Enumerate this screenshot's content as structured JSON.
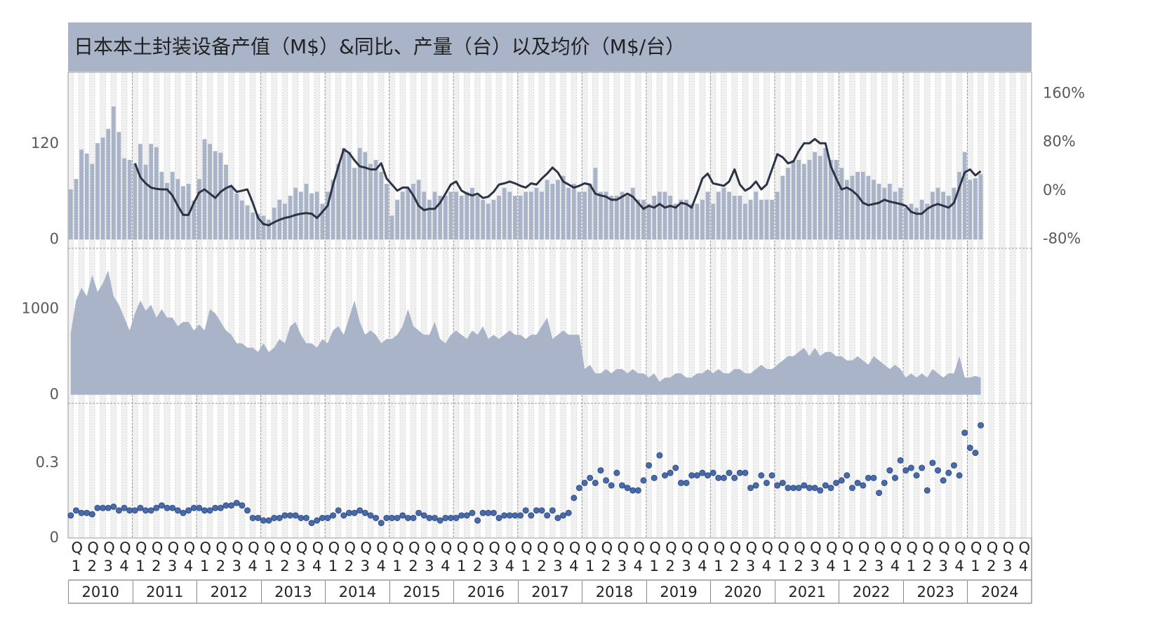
{
  "title": "日本本土封装设备产值（M$）&同比、产量（台）以及均价（M$/台）",
  "x_axis": {
    "quarters": [
      "Q1",
      "Q2",
      "Q3",
      "Q4"
    ],
    "years": [
      "2010",
      "2011",
      "2012",
      "2013",
      "2014",
      "2015",
      "2016",
      "2017",
      "2018",
      "2019",
      "2020",
      "2021",
      "2022",
      "2023",
      "2024"
    ]
  },
  "chart_data": [
    {
      "type": "bar",
      "ylim": [
        -11,
        210
      ],
      "yticks": [
        0,
        120
      ],
      "y2lim": [
        -95,
        195
      ],
      "y2ticks": [
        {
          "value": -80,
          "label": "-80%"
        },
        {
          "value": 0,
          "label": "0%"
        },
        {
          "value": 80,
          "label": "80%"
        },
        {
          "value": 160,
          "label": "160%"
        }
      ],
      "grid": true,
      "series": [
        {
          "type": "bar",
          "color": "#aab4c8",
          "values": [
            63,
            76,
            113,
            108,
            95,
            121,
            128,
            139,
            167,
            135,
            102,
            100,
            95,
            120,
            94,
            120,
            116,
            85,
            71,
            85,
            76,
            67,
            70,
            49,
            76,
            126,
            120,
            111,
            109,
            94,
            67,
            58,
            49,
            43,
            34,
            32,
            30,
            25,
            40,
            50,
            45,
            55,
            65,
            60,
            70,
            58,
            60,
            45,
            60,
            75,
            95,
            115,
            110,
            90,
            115,
            110,
            95,
            100,
            85,
            70,
            30,
            50,
            60,
            65,
            70,
            75,
            60,
            50,
            60,
            55,
            55,
            60,
            60,
            55,
            60,
            65,
            55,
            50,
            45,
            50,
            55,
            65,
            60,
            55,
            55,
            60,
            60,
            65,
            60,
            75,
            70,
            75,
            80,
            65,
            70,
            60,
            60,
            70,
            90,
            60,
            60,
            55,
            55,
            60,
            55,
            65,
            50,
            50,
            45,
            55,
            60,
            60,
            55,
            45,
            50,
            50,
            45,
            45,
            50,
            60,
            45,
            60,
            65,
            60,
            55,
            55,
            45,
            50,
            60,
            50,
            50,
            50,
            60,
            80,
            90,
            100,
            100,
            95,
            100,
            110,
            105,
            115,
            100,
            100,
            90,
            75,
            80,
            85,
            85,
            80,
            75,
            70,
            65,
            70,
            60,
            65,
            40,
            45,
            40,
            50,
            45,
            60,
            65,
            60,
            55,
            65,
            85,
            110,
            75,
            77,
            82
          ]
        },
        {
          "type": "line",
          "axis": "y2",
          "color": "#2b3345",
          "values": [
            null,
            null,
            null,
            null,
            null,
            null,
            null,
            null,
            null,
            null,
            null,
            null,
            45,
            22,
            12,
            5,
            3,
            2,
            2,
            -8,
            -25,
            -40,
            -40,
            -20,
            -3,
            2,
            -5,
            -12,
            -2,
            4,
            8,
            -2,
            0,
            2,
            -20,
            -45,
            -55,
            -57,
            -52,
            -48,
            -45,
            -43,
            -40,
            -38,
            -37,
            -38,
            -45,
            -35,
            -25,
            10,
            40,
            68,
            62,
            50,
            40,
            38,
            35,
            35,
            45,
            20,
            10,
            0,
            5,
            5,
            -8,
            -25,
            -32,
            -30,
            -30,
            -20,
            -5,
            10,
            15,
            0,
            -5,
            -8,
            -5,
            -12,
            -10,
            -2,
            10,
            12,
            15,
            12,
            8,
            5,
            12,
            10,
            20,
            28,
            38,
            30,
            15,
            10,
            5,
            8,
            12,
            10,
            -5,
            -8,
            -10,
            -15,
            -15,
            -10,
            -5,
            -10,
            -20,
            -30,
            -25,
            -28,
            -22,
            -28,
            -25,
            -28,
            -20,
            -22,
            -28,
            -5,
            20,
            28,
            12,
            10,
            8,
            15,
            35,
            10,
            0,
            5,
            15,
            2,
            10,
            35,
            60,
            55,
            45,
            48,
            65,
            78,
            78,
            85,
            78,
            78,
            40,
            20,
            2,
            5,
            0,
            -8,
            -20,
            -24,
            -22,
            -20,
            -15,
            -18,
            -20,
            -22,
            -25,
            -35,
            -38,
            -38,
            -30,
            -25,
            -22,
            -25,
            -28,
            -20,
            5,
            30,
            35,
            25,
            32
          ]
        }
      ]
    },
    {
      "type": "area",
      "ylim": [
        -100,
        1700
      ],
      "yticks": [
        0,
        1000
      ],
      "color": "#aab4c8",
      "values": [
        720,
        1100,
        1250,
        1150,
        1400,
        1200,
        1300,
        1450,
        1150,
        1050,
        900,
        750,
        950,
        1100,
        980,
        1050,
        900,
        1000,
        900,
        900,
        800,
        850,
        850,
        750,
        820,
        750,
        1000,
        950,
        850,
        750,
        700,
        600,
        600,
        550,
        550,
        500,
        600,
        500,
        550,
        650,
        600,
        800,
        850,
        700,
        600,
        600,
        550,
        650,
        600,
        750,
        800,
        700,
        900,
        1100,
        850,
        700,
        750,
        700,
        600,
        650,
        650,
        700,
        800,
        1000,
        800,
        750,
        700,
        700,
        850,
        650,
        600,
        700,
        750,
        700,
        650,
        750,
        700,
        800,
        650,
        700,
        650,
        700,
        750,
        700,
        700,
        650,
        700,
        700,
        800,
        900,
        650,
        700,
        750,
        700,
        700,
        700,
        300,
        350,
        250,
        250,
        300,
        250,
        300,
        300,
        250,
        300,
        250,
        250,
        200,
        250,
        150,
        200,
        200,
        250,
        250,
        200,
        200,
        250,
        250,
        300,
        250,
        300,
        250,
        250,
        300,
        300,
        250,
        250,
        300,
        350,
        300,
        300,
        350,
        400,
        450,
        450,
        500,
        550,
        450,
        550,
        450,
        500,
        500,
        450,
        450,
        400,
        400,
        450,
        400,
        350,
        450,
        400,
        350,
        300,
        350,
        300,
        200,
        250,
        200,
        250,
        200,
        300,
        250,
        200,
        250,
        250,
        450,
        200,
        200,
        220,
        200
      ]
    },
    {
      "type": "dot",
      "ylim": [
        0,
        0.535
      ],
      "yticks": [
        0,
        0.3
      ],
      "color": "#4a6aa8",
      "values": [
        0.09,
        0.11,
        0.1,
        0.1,
        0.095,
        0.12,
        0.12,
        0.12,
        0.125,
        0.11,
        0.12,
        0.11,
        0.11,
        0.12,
        0.11,
        0.11,
        0.12,
        0.13,
        0.12,
        0.12,
        0.11,
        0.1,
        0.11,
        0.12,
        0.12,
        0.11,
        0.11,
        0.12,
        0.12,
        0.13,
        0.13,
        0.14,
        0.13,
        0.11,
        0.08,
        0.08,
        0.07,
        0.07,
        0.08,
        0.08,
        0.09,
        0.09,
        0.09,
        0.08,
        0.08,
        0.06,
        0.07,
        0.08,
        0.08,
        0.09,
        0.11,
        0.09,
        0.1,
        0.1,
        0.11,
        0.1,
        0.09,
        0.08,
        0.06,
        0.08,
        0.08,
        0.08,
        0.09,
        0.08,
        0.08,
        0.1,
        0.09,
        0.08,
        0.08,
        0.07,
        0.08,
        0.08,
        0.08,
        0.09,
        0.09,
        0.1,
        0.07,
        0.1,
        0.1,
        0.1,
        0.08,
        0.09,
        0.09,
        0.09,
        0.09,
        0.11,
        0.09,
        0.11,
        0.11,
        0.09,
        0.11,
        0.08,
        0.09,
        0.1,
        0.16,
        0.2,
        0.22,
        0.24,
        0.22,
        0.27,
        0.23,
        0.21,
        0.26,
        0.21,
        0.2,
        0.19,
        0.19,
        0.23,
        0.29,
        0.24,
        0.33,
        0.25,
        0.26,
        0.28,
        0.22,
        0.22,
        0.25,
        0.25,
        0.26,
        0.25,
        0.26,
        0.24,
        0.24,
        0.26,
        0.24,
        0.26,
        0.26,
        0.2,
        0.21,
        0.25,
        0.22,
        0.25,
        0.21,
        0.22,
        0.2,
        0.2,
        0.2,
        0.21,
        0.2,
        0.2,
        0.19,
        0.21,
        0.2,
        0.22,
        0.23,
        0.25,
        0.2,
        0.22,
        0.21,
        0.24,
        0.24,
        0.18,
        0.22,
        0.27,
        0.24,
        0.31,
        0.27,
        0.28,
        0.25,
        0.28,
        0.19,
        0.3,
        0.27,
        0.23,
        0.26,
        0.29,
        0.25,
        0.42,
        0.36,
        0.34,
        0.45
      ]
    }
  ]
}
